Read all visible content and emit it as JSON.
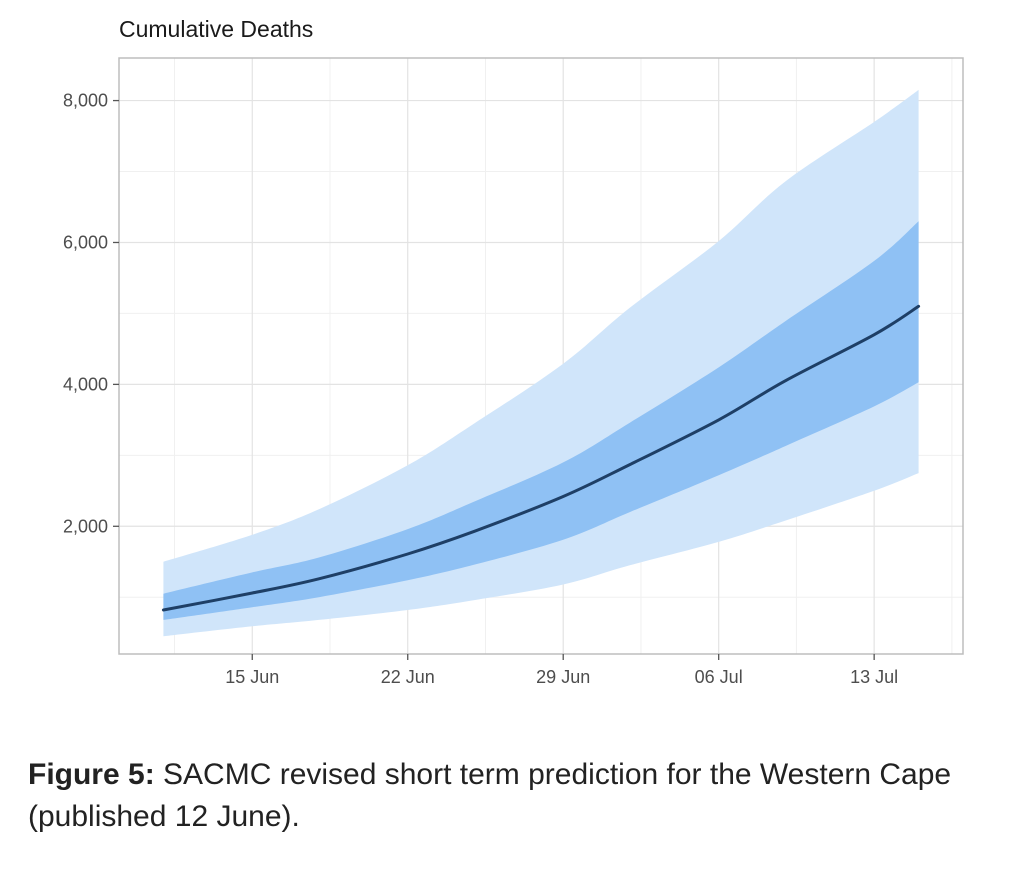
{
  "chart_data": {
    "type": "area",
    "title": "Cumulative Deaths",
    "xlabel": "",
    "ylabel": "",
    "x_range": [
      "2020-06-09",
      "2020-07-17"
    ],
    "ylim": [
      200,
      8600
    ],
    "y_ticks": [
      2000,
      4000,
      6000,
      8000
    ],
    "y_tick_labels": [
      "2,000",
      "4,000",
      "6,000",
      "8,000"
    ],
    "x_ticks": [
      "2020-06-15",
      "2020-06-22",
      "2020-06-29",
      "2020-07-06",
      "2020-07-13"
    ],
    "x_tick_labels": [
      "15 Jun",
      "22 Jun",
      "29 Jun",
      "06 Jul",
      "13 Jul"
    ],
    "grid": true,
    "x": [
      "2020-06-11",
      "2020-06-15",
      "2020-06-18",
      "2020-06-22",
      "2020-06-25",
      "2020-06-29",
      "2020-07-02",
      "2020-07-06",
      "2020-07-09",
      "2020-07-13",
      "2020-07-15"
    ],
    "series": [
      {
        "type": "band",
        "lower": [
          450,
          590,
          680,
          820,
          960,
          1180,
          1450,
          1780,
          2080,
          2500,
          2750
        ],
        "upper": [
          1500,
          1880,
          2240,
          2860,
          3450,
          4290,
          5080,
          6020,
          6860,
          7700,
          8150
        ],
        "color": "#d0e5fa"
      },
      {
        "type": "band",
        "lower": [
          680,
          860,
          1000,
          1240,
          1460,
          1810,
          2200,
          2720,
          3130,
          3690,
          4030
        ],
        "upper": [
          1050,
          1350,
          1560,
          1960,
          2350,
          2900,
          3460,
          4240,
          4890,
          5740,
          6300
        ],
        "color": "#8fc1f4"
      },
      {
        "type": "line",
        "values": [
          820,
          1060,
          1260,
          1610,
          1930,
          2420,
          2870,
          3500,
          4050,
          4700,
          5100
        ],
        "color": "#1e3f66"
      }
    ]
  },
  "caption": {
    "label": "Figure 5:",
    "text": " SACMC revised short term prediction for the Western Cape (published 12 June)."
  }
}
